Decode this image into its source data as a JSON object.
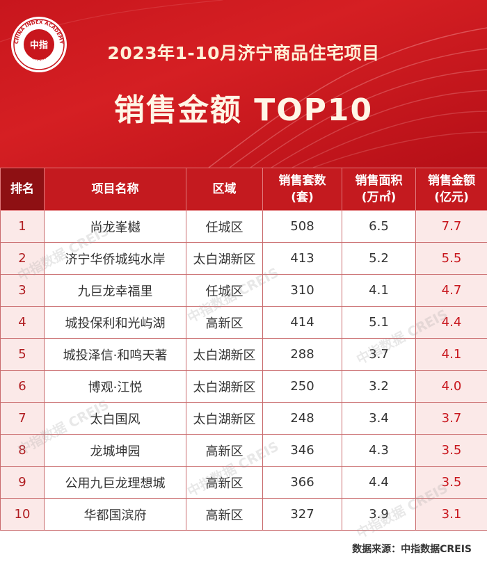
{
  "logo": {
    "text_top": "CHINA INDEX ACADEMY",
    "text_center": "中指",
    "text_bottom": "研究院"
  },
  "header": {
    "title_line1": "2023年1-10月济宁商品住宅项目",
    "title_line2": "销售金额 TOP10"
  },
  "table": {
    "headers": {
      "rank": "排名",
      "name": "项目名称",
      "district": "区域",
      "units_line1": "销售套数",
      "units_line2": "(套)",
      "area_line1": "销售面积",
      "area_line2": "(万㎡)",
      "amount_line1": "销售金额",
      "amount_line2": "(亿元)"
    }
  },
  "footer": {
    "source": "数据来源：中指数据CREIS"
  },
  "watermark": "中指数据 CREIS",
  "colors": {
    "brand_red": "#c8161d",
    "header_bg": "#c41a1f",
    "rank_header_bg": "#8e1013",
    "highlight_cell": "#fbe9e8"
  },
  "chart_data": {
    "type": "table",
    "title": "2023年1-10月济宁商品住宅项目",
    "subtitle": "销售金额 TOP10",
    "columns": [
      "排名",
      "项目名称",
      "区域",
      "销售套数(套)",
      "销售面积(万㎡)",
      "销售金额(亿元)"
    ],
    "rows": [
      {
        "rank": "1",
        "name": "尚龙峯樾",
        "district": "任城区",
        "units": "508",
        "area": "6.5",
        "amount": "7.7"
      },
      {
        "rank": "2",
        "name": "济宁华侨城纯水岸",
        "district": "太白湖新区",
        "units": "413",
        "area": "5.2",
        "amount": "5.5"
      },
      {
        "rank": "3",
        "name": "九巨龙幸福里",
        "district": "任城区",
        "units": "310",
        "area": "4.1",
        "amount": "4.7"
      },
      {
        "rank": "4",
        "name": "城投保利和光屿湖",
        "district": "高新区",
        "units": "414",
        "area": "5.1",
        "amount": "4.4"
      },
      {
        "rank": "5",
        "name": "城投泽信·和鸣天著",
        "district": "太白湖新区",
        "units": "288",
        "area": "3.7",
        "amount": "4.1"
      },
      {
        "rank": "6",
        "name": "博观·江悦",
        "district": "太白湖新区",
        "units": "250",
        "area": "3.2",
        "amount": "4.0"
      },
      {
        "rank": "7",
        "name": "太白国风",
        "district": "太白湖新区",
        "units": "248",
        "area": "3.4",
        "amount": "3.7"
      },
      {
        "rank": "8",
        "name": "龙城坤园",
        "district": "高新区",
        "units": "346",
        "area": "4.3",
        "amount": "3.5"
      },
      {
        "rank": "9",
        "name": "公用九巨龙理想城",
        "district": "高新区",
        "units": "366",
        "area": "4.4",
        "amount": "3.5"
      },
      {
        "rank": "10",
        "name": "华都国滨府",
        "district": "高新区",
        "units": "327",
        "area": "3.9",
        "amount": "3.1"
      }
    ]
  }
}
